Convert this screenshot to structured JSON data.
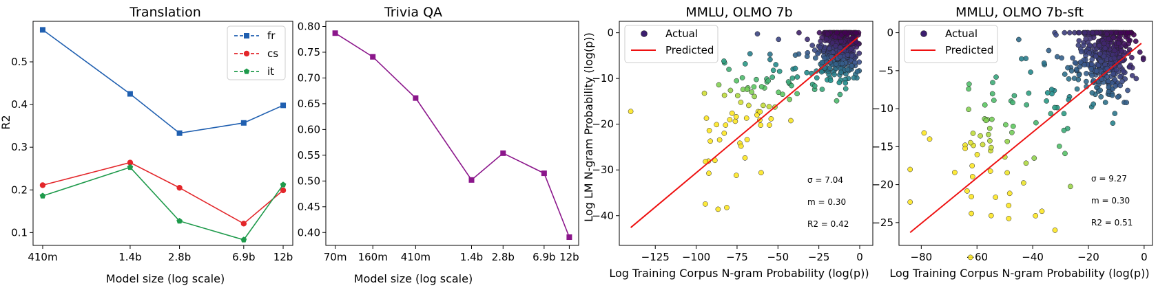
{
  "chart_data": [
    {
      "type": "line",
      "title": "Translation",
      "xlabel": "Model size (log scale)",
      "ylabel": "R2",
      "categories": [
        "410m",
        "1.4b",
        "2.8b",
        "6.9b",
        "12b"
      ],
      "x_params_billions": [
        0.41,
        1.4,
        2.8,
        6.9,
        12
      ],
      "x_scale": "log",
      "ylim": [
        0.07,
        0.595
      ],
      "yticks": [
        0.1,
        0.2,
        0.3,
        0.4,
        0.5
      ],
      "ytick_labels": [
        "0.1",
        "0.2",
        "0.3",
        "0.4",
        "0.5"
      ],
      "legend_position": "top-right",
      "series": [
        {
          "name": "fr",
          "color": "#1f5fb0",
          "marker": "square",
          "values": [
            0.575,
            0.425,
            0.333,
            0.357,
            0.398
          ]
        },
        {
          "name": "cs",
          "color": "#e3262a",
          "marker": "circle",
          "values": [
            0.211,
            0.264,
            0.205,
            0.121,
            0.199
          ]
        },
        {
          "name": "it",
          "color": "#1e9a4b",
          "marker": "pentagon",
          "values": [
            0.186,
            0.253,
            0.127,
            0.083,
            0.212
          ]
        }
      ]
    },
    {
      "type": "line",
      "title": "Trivia QA",
      "xlabel": "Model size (log scale)",
      "ylabel": "",
      "categories": [
        "70m",
        "160m",
        "410m",
        "1.4b",
        "2.8b",
        "6.9b",
        "12b"
      ],
      "x_params_billions": [
        0.07,
        0.16,
        0.41,
        1.4,
        2.8,
        6.9,
        12
      ],
      "x_scale": "log",
      "ylim": [
        0.375,
        0.81
      ],
      "yticks": [
        0.4,
        0.45,
        0.5,
        0.55,
        0.6,
        0.65,
        0.7,
        0.75,
        0.8
      ],
      "ytick_labels": [
        "0.40",
        "0.45",
        "0.50",
        "0.55",
        "0.60",
        "0.65",
        "0.70",
        "0.75",
        "0.80"
      ],
      "series": [
        {
          "name": "",
          "color": "#8b168b",
          "marker": "square",
          "values": [
            0.787,
            0.741,
            0.661,
            0.502,
            0.554,
            0.515,
            0.391
          ]
        }
      ]
    },
    {
      "type": "scatter",
      "title": "MMLU, OLMO 7b",
      "xlabel": "Log Training Corpus N-gram Probability (log(p))",
      "ylabel": "Log LM N-gram Probability  (log(p))",
      "xlim": [
        -147,
        8
      ],
      "ylim": [
        -46.5,
        2.5
      ],
      "xticks": [
        -125,
        -100,
        -75,
        -50,
        -25,
        0
      ],
      "xtick_labels": [
        "−125",
        "−100",
        "−75",
        "−50",
        "−25",
        "0"
      ],
      "yticks": [
        -40,
        -30,
        -20,
        -10,
        0
      ],
      "ytick_labels": [
        "−40",
        "−30",
        "−20",
        "−10",
        "0"
      ],
      "legend": [
        "Actual",
        "Predicted"
      ],
      "legend_position": "top-left",
      "predicted_line": {
        "x": [
          -140,
          -1
        ],
        "y": [
          -42.6,
          -1.0
        ]
      },
      "annotations": [
        "σ = 7.04",
        "m = 0.30",
        "R2 = 0.42"
      ]
    },
    {
      "type": "scatter",
      "title": "MMLU, OLMO 7b-sft",
      "xlabel": "Log Training Corpus N-gram Probability (log(p))",
      "ylabel": "",
      "xlim": [
        -88,
        3
      ],
      "ylim": [
        -28,
        1.5
      ],
      "xticks": [
        -80,
        -60,
        -40,
        -20,
        0
      ],
      "xtick_labels": [
        "−80",
        "−60",
        "−40",
        "−20",
        "0"
      ],
      "yticks": [
        -25,
        -20,
        -15,
        -10,
        -5,
        0
      ],
      "ytick_labels": [
        "−25",
        "−20",
        "−15",
        "−10",
        "−5",
        "0"
      ],
      "legend": [
        "Actual",
        "Predicted"
      ],
      "legend_position": "top-left",
      "predicted_line": {
        "x": [
          -84,
          -1
        ],
        "y": [
          -26.3,
          -1.4
        ]
      },
      "annotations": [
        "σ = 9.27",
        "m = 0.30",
        "R2 = 0.51"
      ]
    }
  ]
}
